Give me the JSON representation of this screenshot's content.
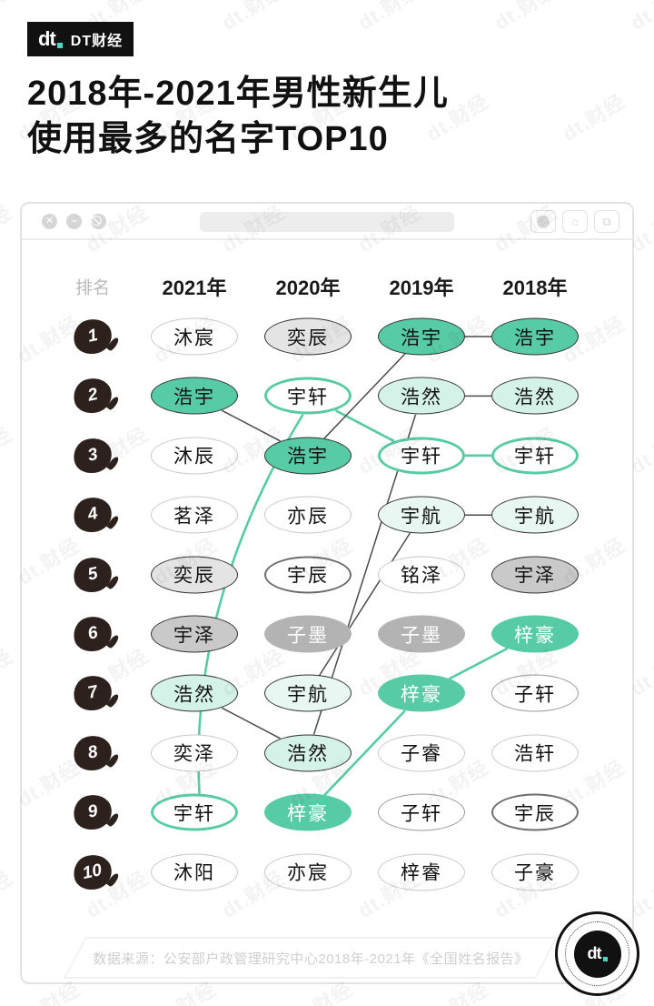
{
  "brand": {
    "logo_text": "dt",
    "brand_name": "DT财经"
  },
  "title": {
    "line1": "2018年-2021年男性新生儿",
    "line2": "使用最多的名字TOP10"
  },
  "window": {
    "close_glyph": "✕",
    "minimize_glyph": "–",
    "block_glyph": "⃠",
    "share_glyph": "⌂",
    "tabs_glyph": "⧉"
  },
  "table": {
    "rank_header": "排名",
    "columns": [
      "2021年",
      "2020年",
      "2019年",
      "2018年"
    ],
    "ranks": [
      "1",
      "2",
      "3",
      "4",
      "5",
      "6",
      "7",
      "8",
      "9",
      "10"
    ],
    "cells": [
      [
        {
          "text": "沐宸",
          "style": "w"
        },
        {
          "text": "浩宇",
          "style": "t"
        },
        {
          "text": "沐辰",
          "style": "w"
        },
        {
          "text": "茗泽",
          "style": "w"
        },
        {
          "text": "奕辰",
          "style": "g1"
        },
        {
          "text": "宇泽",
          "style": "g2"
        },
        {
          "text": "浩然",
          "style": "m1"
        },
        {
          "text": "奕泽",
          "style": "w"
        },
        {
          "text": "宇轩",
          "style": "tb"
        },
        {
          "text": "沐阳",
          "style": "w"
        }
      ],
      [
        {
          "text": "奕辰",
          "style": "g1"
        },
        {
          "text": "宇轩",
          "style": "tb"
        },
        {
          "text": "浩宇",
          "style": "t"
        },
        {
          "text": "亦辰",
          "style": "w"
        },
        {
          "text": "宇辰",
          "style": "wd"
        },
        {
          "text": "子墨",
          "style": "g3"
        },
        {
          "text": "宇航",
          "style": "m2"
        },
        {
          "text": "浩然",
          "style": "m1"
        },
        {
          "text": "梓豪",
          "style": "tw"
        },
        {
          "text": "亦宸",
          "style": "w"
        }
      ],
      [
        {
          "text": "浩宇",
          "style": "t"
        },
        {
          "text": "浩然",
          "style": "m1"
        },
        {
          "text": "宇轩",
          "style": "tb"
        },
        {
          "text": "宇航",
          "style": "m2"
        },
        {
          "text": "铭泽",
          "style": "w"
        },
        {
          "text": "子墨",
          "style": "g3"
        },
        {
          "text": "梓豪",
          "style": "tw"
        },
        {
          "text": "子睿",
          "style": "w"
        },
        {
          "text": "子轩",
          "style": "wm"
        },
        {
          "text": "梓睿",
          "style": "w"
        }
      ],
      [
        {
          "text": "浩宇",
          "style": "t"
        },
        {
          "text": "浩然",
          "style": "m1"
        },
        {
          "text": "宇轩",
          "style": "tb"
        },
        {
          "text": "宇航",
          "style": "m2"
        },
        {
          "text": "宇泽",
          "style": "g2"
        },
        {
          "text": "梓豪",
          "style": "tw"
        },
        {
          "text": "子轩",
          "style": "wm"
        },
        {
          "text": "浩轩",
          "style": "w"
        },
        {
          "text": "宇辰",
          "style": "wd"
        },
        {
          "text": "子豪",
          "style": "w"
        }
      ]
    ],
    "connections": [
      {
        "name": "宇轩",
        "from": [
          1,
          2
        ],
        "to": [
          0,
          9
        ],
        "color": "teal",
        "curve": "left"
      },
      {
        "name": "宇轩",
        "from": [
          1,
          2
        ],
        "to": [
          2,
          3
        ],
        "color": "teal"
      },
      {
        "name": "宇轩",
        "from": [
          2,
          3
        ],
        "to": [
          3,
          3
        ],
        "color": "teal"
      },
      {
        "name": "梓豪",
        "from": [
          1,
          9
        ],
        "to": [
          2,
          7
        ],
        "color": "teal"
      },
      {
        "name": "梓豪",
        "from": [
          2,
          7
        ],
        "to": [
          3,
          6
        ],
        "color": "teal"
      },
      {
        "name": "浩宇",
        "from": [
          0,
          2
        ],
        "to": [
          1,
          3
        ],
        "color": "dark"
      },
      {
        "name": "浩宇",
        "from": [
          1,
          3
        ],
        "to": [
          2,
          1
        ],
        "color": "dark"
      },
      {
        "name": "浩宇",
        "from": [
          2,
          1
        ],
        "to": [
          3,
          1
        ],
        "color": "dark"
      },
      {
        "name": "浩然",
        "from": [
          0,
          7
        ],
        "to": [
          1,
          8
        ],
        "color": "dark"
      },
      {
        "name": "浩然",
        "from": [
          1,
          8
        ],
        "to": [
          2,
          2
        ],
        "color": "dark"
      },
      {
        "name": "浩然",
        "from": [
          2,
          2
        ],
        "to": [
          3,
          2
        ],
        "color": "dark"
      },
      {
        "name": "宇航",
        "from": [
          1,
          7
        ],
        "to": [
          2,
          4
        ],
        "color": "dark"
      },
      {
        "name": "宇航",
        "from": [
          2,
          4
        ],
        "to": [
          3,
          4
        ],
        "color": "dark"
      }
    ]
  },
  "footer": {
    "source": "数据来源：公安部户政管理研究中心2018年-2021年《全国姓名报告》"
  },
  "watermark": "dt.财经",
  "colors": {
    "teal": "#57cba5",
    "mint": "#d5f2e9",
    "mint_light": "#e8f7f2",
    "gray_light": "#e4e4e4",
    "gray_mid": "#c9c9c9",
    "gray_deep": "#b3b3b3",
    "ink": "#111111",
    "line_dark": "#4a4a4a",
    "badge": "#2d211e",
    "accent_dot": "#4dd8c6"
  }
}
